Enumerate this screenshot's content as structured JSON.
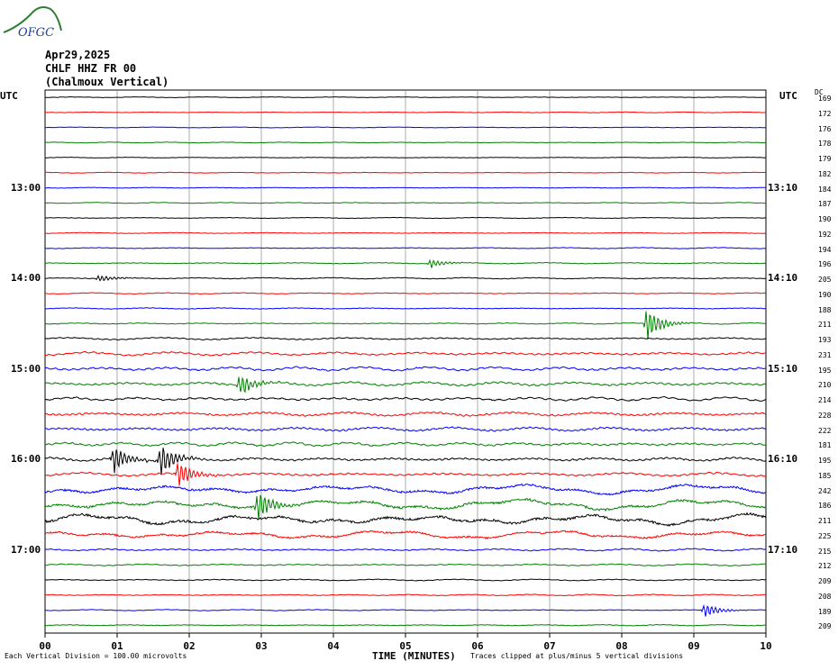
{
  "logo_text": "OFGC",
  "header": {
    "date": "Apr29,2025",
    "station": "CHLF HHZ FR 00",
    "location": "(Chalmoux Vertical)"
  },
  "utc_left_label": "UTC",
  "utc_right_label": "UTC",
  "dc_label": "DC",
  "left_time_labels": [
    "13:00",
    "14:00",
    "15:00",
    "16:00",
    "17:00"
  ],
  "right_time_labels": [
    "13:10",
    "14:10",
    "15:10",
    "16:10",
    "17:10"
  ],
  "footer": {
    "xlabel": "TIME (MINUTES)",
    "division_note": "Each Vertical Division =  100.00 microvolts",
    "clip_note": "Traces clipped at plus/minus 5 vertical divisions"
  },
  "colors": {
    "black": "#000000",
    "red": "#ff0000",
    "blue": "#0000ff",
    "green": "#008000",
    "grid": "#888888"
  },
  "chart_data": {
    "type": "line",
    "title": "Apr29,2025 CHLF HHZ FR 00 (Chalmoux Vertical)",
    "xlabel": "TIME (MINUTES)",
    "xticks": [
      "00",
      "01",
      "02",
      "03",
      "04",
      "05",
      "06",
      "07",
      "08",
      "09",
      "10"
    ],
    "xlim": [
      0,
      10
    ],
    "trace_interval_minutes": 10,
    "trace_color_cycle": [
      "black",
      "red",
      "blue",
      "green"
    ],
    "dc_offsets": [
      169,
      172,
      176,
      178,
      179,
      182,
      184,
      187,
      190,
      192,
      194,
      196,
      205,
      190,
      188,
      211,
      193,
      231,
      195,
      210,
      214,
      228,
      222,
      181,
      195,
      185,
      242,
      186,
      211,
      225,
      215,
      212,
      209,
      208,
      189,
      209
    ],
    "amplitude_divisions": [
      0.2,
      0.2,
      0.2,
      0.2,
      0.2,
      0.2,
      0.2,
      0.25,
      0.25,
      0.25,
      0.3,
      0.3,
      0.35,
      0.3,
      0.3,
      0.35,
      0.6,
      0.9,
      1.0,
      1.0,
      1.0,
      1.0,
      1.0,
      1.0,
      1.0,
      1.0,
      2.4,
      2.6,
      2.8,
      2.0,
      0.6,
      0.5,
      0.4,
      0.35,
      0.3,
      0.3
    ],
    "events": [
      {
        "trace": 12,
        "minute": 0.75,
        "amplitude": 1.2
      },
      {
        "trace": 11,
        "minute": 5.35,
        "amplitude": 1.5
      },
      {
        "trace": 15,
        "minute": 8.35,
        "amplitude": 6
      },
      {
        "trace": 19,
        "minute": 2.7,
        "amplitude": 4
      },
      {
        "trace": 24,
        "minute": 0.95,
        "amplitude": 5
      },
      {
        "trace": 24,
        "minute": 1.6,
        "amplitude": 6
      },
      {
        "trace": 25,
        "minute": 1.85,
        "amplitude": 5
      },
      {
        "trace": 27,
        "minute": 2.95,
        "amplitude": 6
      },
      {
        "trace": 34,
        "minute": 9.15,
        "amplitude": 2.5
      }
    ],
    "grid": true
  }
}
